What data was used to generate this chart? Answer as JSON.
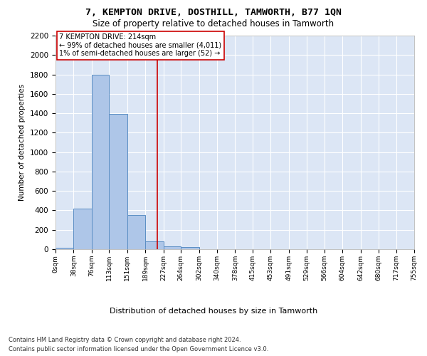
{
  "title": "7, KEMPTON DRIVE, DOSTHILL, TAMWORTH, B77 1QN",
  "subtitle": "Size of property relative to detached houses in Tamworth",
  "xlabel": "Distribution of detached houses by size in Tamworth",
  "ylabel": "Number of detached properties",
  "bar_color": "#aec6e8",
  "bar_edge_color": "#5b8ec4",
  "background_color": "#dce6f5",
  "grid_color": "#ffffff",
  "annotation_box_color": "#cc0000",
  "property_line_color": "#cc0000",
  "bin_edges": [
    0,
    38,
    76,
    113,
    151,
    189,
    227,
    264,
    302,
    340,
    378,
    415,
    453,
    491,
    529,
    566,
    604,
    642,
    680,
    717,
    755
  ],
  "bar_heights": [
    15,
    420,
    1800,
    1390,
    350,
    80,
    30,
    20,
    0,
    0,
    0,
    0,
    0,
    0,
    0,
    0,
    0,
    0,
    0,
    0
  ],
  "property_size": 214,
  "annotation_text": "7 KEMPTON DRIVE: 214sqm\n← 99% of detached houses are smaller (4,011)\n1% of semi-detached houses are larger (52) →",
  "ylim": [
    0,
    2200
  ],
  "yticks": [
    0,
    200,
    400,
    600,
    800,
    1000,
    1200,
    1400,
    1600,
    1800,
    2000,
    2200
  ],
  "footer_line1": "Contains HM Land Registry data © Crown copyright and database right 2024.",
  "footer_line2": "Contains public sector information licensed under the Open Government Licence v3.0."
}
